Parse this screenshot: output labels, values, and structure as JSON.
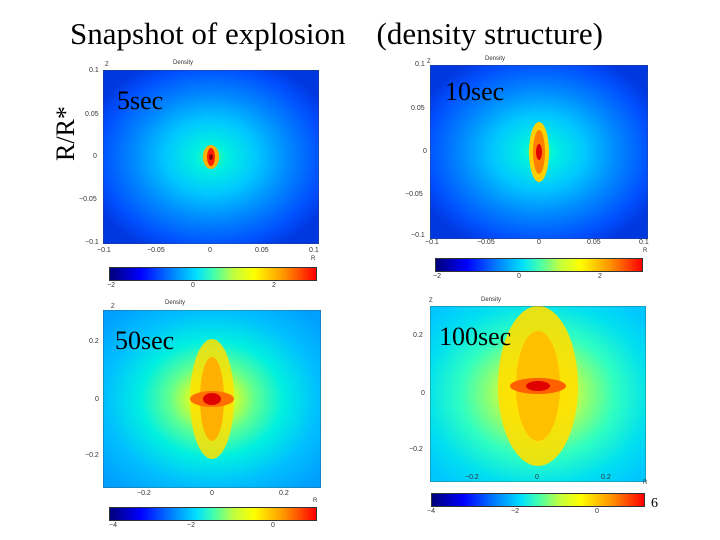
{
  "title": "Snapshot of explosion　(density structure)",
  "y_axis_label": "R/R*",
  "page_number": "6",
  "panels": {
    "p5": {
      "time": "5sec",
      "z_label": "Z",
      "plot_title": "Density",
      "r_label": "R",
      "yticks": [
        "0.1",
        "0.05",
        "0",
        "−0.05",
        "−0.1"
      ],
      "xticks": [
        "−0.1",
        "−0.05",
        "0",
        "0.05",
        "0.1"
      ],
      "cticks": [
        "−2",
        "0",
        "2"
      ]
    },
    "p10": {
      "time": "10sec",
      "z_label": "Z",
      "plot_title": "Density",
      "r_label": "R",
      "yticks": [
        "0.1",
        "0.05",
        "0",
        "−0.05",
        "−0.1"
      ],
      "xticks": [
        "−0.1",
        "−0.05",
        "0",
        "0.05",
        "0.1"
      ],
      "cticks": [
        "−2",
        "0",
        "2"
      ]
    },
    "p50": {
      "time": "50sec",
      "z_label": "Z",
      "plot_title": "Density",
      "r_label": "R",
      "yticks": [
        "0.2",
        "0",
        "−0.2"
      ],
      "xticks": [
        "−0.2",
        "0",
        "0.2"
      ],
      "cticks": [
        "−4",
        "−2",
        "0"
      ]
    },
    "p100": {
      "time": "100sec",
      "z_label": "Z",
      "plot_title": "Density",
      "r_label": "R",
      "yticks": [
        "0.2",
        "0",
        "−0.2"
      ],
      "xticks": [
        "−0.2",
        "0",
        "0.2"
      ],
      "cticks": [
        "−4",
        "−2",
        "0"
      ]
    }
  }
}
